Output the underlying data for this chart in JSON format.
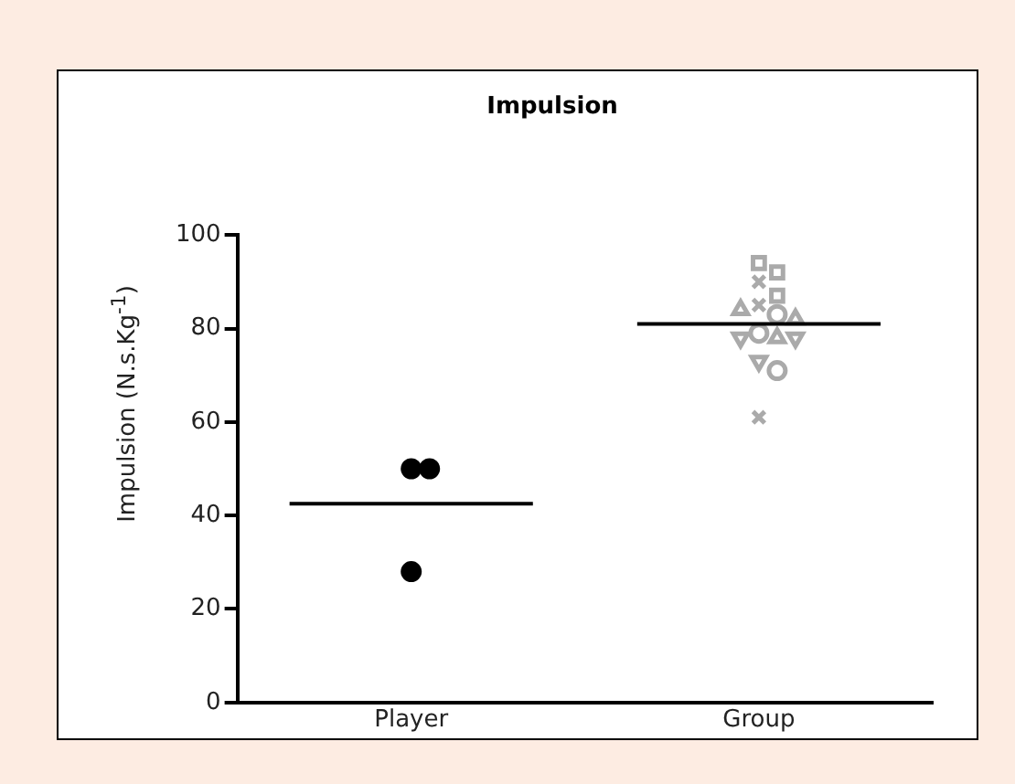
{
  "chart_data": {
    "type": "scatter",
    "title": "Impulsion",
    "ylabel": "Impulsion (N.s.Kg$^{-1}$)",
    "categories": [
      "Player",
      "Group"
    ],
    "ylim": [
      0,
      100
    ],
    "yticks": [
      0,
      20,
      40,
      60,
      80,
      100
    ],
    "grid": false,
    "legend": false,
    "series": [
      {
        "marker": "circle",
        "color": "#000000",
        "x": [
          "Player",
          "Player",
          "Player"
        ],
        "values": [
          50,
          50,
          28
        ]
      },
      {
        "marker": "square",
        "color": "#aaaaaa",
        "x": [
          "Group",
          "Group",
          "Group"
        ],
        "values": [
          94,
          92,
          87
        ]
      },
      {
        "marker": "cross",
        "color": "#aaaaaa",
        "x": [
          "Group",
          "Group",
          "Group"
        ],
        "values": [
          90,
          85,
          61
        ]
      },
      {
        "marker": "triangle",
        "color": "#aaaaaa",
        "x": [
          "Group",
          "Group",
          "Group"
        ],
        "values": [
          82,
          84,
          78
        ]
      },
      {
        "marker": "triangle",
        "color": "#aaaaaa",
        "x": [
          "Group",
          "Group",
          "Group"
        ],
        "values": [
          78,
          78,
          73
        ]
      },
      {
        "marker": "circle",
        "color": "#aaaaaa",
        "x": [
          "Group",
          "Group",
          "Group"
        ],
        "values": [
          83,
          79,
          71
        ]
      },
      {
        "type": "box",
        "color": "#000000",
        "boxes": [
          {
            "low": 42.5,
            "q1": 42.5,
            "median": 42.5,
            "q3": 42.5,
            "high": 42.5
          },
          {
            "low": 81,
            "q1": 81,
            "median": 81,
            "q3": 81,
            "high": 81
          }
        ]
      }
    ]
  }
}
